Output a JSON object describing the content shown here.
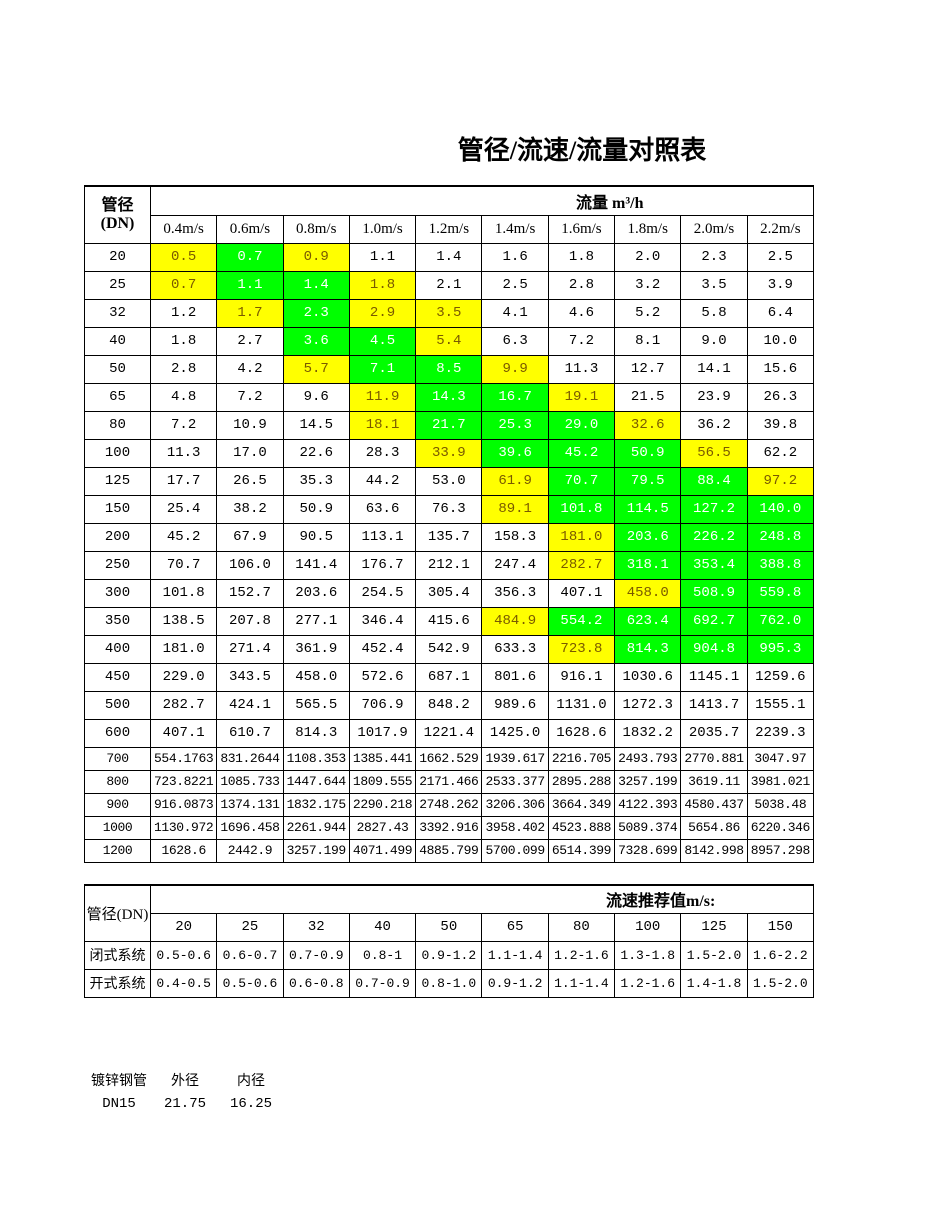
{
  "title": "管径/流速/流量对照表",
  "flow_table": {
    "dn_label": [
      "管径",
      "(DN)"
    ],
    "flow_label": "流量 m³/h",
    "velocities": [
      "0.4m/s",
      "0.6m/s",
      "0.8m/s",
      "1.0m/s",
      "1.2m/s",
      "1.4m/s",
      "1.6m/s",
      "1.8m/s",
      "2.0m/s",
      "2.2m/s"
    ],
    "fill_colors": {
      "yellow": "#ffff00",
      "green": "#00ff00"
    },
    "rows": [
      {
        "dn": "20",
        "values": [
          "0.5",
          "0.7",
          "0.9",
          "1.1",
          "1.4",
          "1.6",
          "1.8",
          "2.0",
          "2.3",
          "2.5"
        ],
        "fills": [
          "yellow",
          "green",
          "yellow",
          null,
          null,
          null,
          null,
          null,
          null,
          null
        ]
      },
      {
        "dn": "25",
        "values": [
          "0.7",
          "1.1",
          "1.4",
          "1.8",
          "2.1",
          "2.5",
          "2.8",
          "3.2",
          "3.5",
          "3.9"
        ],
        "fills": [
          "yellow",
          "green",
          "green",
          "yellow",
          null,
          null,
          null,
          null,
          null,
          null
        ]
      },
      {
        "dn": "32",
        "values": [
          "1.2",
          "1.7",
          "2.3",
          "2.9",
          "3.5",
          "4.1",
          "4.6",
          "5.2",
          "5.8",
          "6.4"
        ],
        "fills": [
          null,
          "yellow",
          "green",
          "yellow",
          "yellow",
          null,
          null,
          null,
          null,
          null
        ]
      },
      {
        "dn": "40",
        "values": [
          "1.8",
          "2.7",
          "3.6",
          "4.5",
          "5.4",
          "6.3",
          "7.2",
          "8.1",
          "9.0",
          "10.0"
        ],
        "fills": [
          null,
          null,
          "green",
          "green",
          "yellow",
          null,
          null,
          null,
          null,
          null
        ]
      },
      {
        "dn": "50",
        "values": [
          "2.8",
          "4.2",
          "5.7",
          "7.1",
          "8.5",
          "9.9",
          "11.3",
          "12.7",
          "14.1",
          "15.6"
        ],
        "fills": [
          null,
          null,
          "yellow",
          "green",
          "green",
          "yellow",
          null,
          null,
          null,
          null
        ]
      },
      {
        "dn": "65",
        "values": [
          "4.8",
          "7.2",
          "9.6",
          "11.9",
          "14.3",
          "16.7",
          "19.1",
          "21.5",
          "23.9",
          "26.3"
        ],
        "fills": [
          null,
          null,
          null,
          "yellow",
          "green",
          "green",
          "yellow",
          null,
          null,
          null
        ]
      },
      {
        "dn": "80",
        "values": [
          "7.2",
          "10.9",
          "14.5",
          "18.1",
          "21.7",
          "25.3",
          "29.0",
          "32.6",
          "36.2",
          "39.8"
        ],
        "fills": [
          null,
          null,
          null,
          "yellow",
          "green",
          "green",
          "green",
          "yellow",
          null,
          null
        ]
      },
      {
        "dn": "100",
        "values": [
          "11.3",
          "17.0",
          "22.6",
          "28.3",
          "33.9",
          "39.6",
          "45.2",
          "50.9",
          "56.5",
          "62.2"
        ],
        "fills": [
          null,
          null,
          null,
          null,
          "yellow",
          "green",
          "green",
          "green",
          "yellow",
          null
        ]
      },
      {
        "dn": "125",
        "values": [
          "17.7",
          "26.5",
          "35.3",
          "44.2",
          "53.0",
          "61.9",
          "70.7",
          "79.5",
          "88.4",
          "97.2"
        ],
        "fills": [
          null,
          null,
          null,
          null,
          null,
          "yellow",
          "green",
          "green",
          "green",
          "yellow"
        ]
      },
      {
        "dn": "150",
        "values": [
          "25.4",
          "38.2",
          "50.9",
          "63.6",
          "76.3",
          "89.1",
          "101.8",
          "114.5",
          "127.2",
          "140.0"
        ],
        "fills": [
          null,
          null,
          null,
          null,
          null,
          "yellow",
          "green",
          "green",
          "green",
          "green"
        ]
      },
      {
        "dn": "200",
        "values": [
          "45.2",
          "67.9",
          "90.5",
          "113.1",
          "135.7",
          "158.3",
          "181.0",
          "203.6",
          "226.2",
          "248.8"
        ],
        "fills": [
          null,
          null,
          null,
          null,
          null,
          null,
          "yellow",
          "green",
          "green",
          "green"
        ]
      },
      {
        "dn": "250",
        "values": [
          "70.7",
          "106.0",
          "141.4",
          "176.7",
          "212.1",
          "247.4",
          "282.7",
          "318.1",
          "353.4",
          "388.8"
        ],
        "fills": [
          null,
          null,
          null,
          null,
          null,
          null,
          "yellow",
          "green",
          "green",
          "green"
        ]
      },
      {
        "dn": "300",
        "values": [
          "101.8",
          "152.7",
          "203.6",
          "254.5",
          "305.4",
          "356.3",
          "407.1",
          "458.0",
          "508.9",
          "559.8"
        ],
        "fills": [
          null,
          null,
          null,
          null,
          null,
          null,
          null,
          "yellow",
          "green",
          "green"
        ]
      },
      {
        "dn": "350",
        "values": [
          "138.5",
          "207.8",
          "277.1",
          "346.4",
          "415.6",
          "484.9",
          "554.2",
          "623.4",
          "692.7",
          "762.0"
        ],
        "fills": [
          null,
          null,
          null,
          null,
          null,
          "yellow",
          "green",
          "green",
          "green",
          "green"
        ]
      },
      {
        "dn": "400",
        "values": [
          "181.0",
          "271.4",
          "361.9",
          "452.4",
          "542.9",
          "633.3",
          "723.8",
          "814.3",
          "904.8",
          "995.3"
        ],
        "fills": [
          null,
          null,
          null,
          null,
          null,
          null,
          "yellow",
          "green",
          "green",
          "green"
        ]
      },
      {
        "dn": "450",
        "values": [
          "229.0",
          "343.5",
          "458.0",
          "572.6",
          "687.1",
          "801.6",
          "916.1",
          "1030.6",
          "1145.1",
          "1259.6"
        ]
      },
      {
        "dn": "500",
        "values": [
          "282.7",
          "424.1",
          "565.5",
          "706.9",
          "848.2",
          "989.6",
          "1131.0",
          "1272.3",
          "1413.7",
          "1555.1"
        ]
      },
      {
        "dn": "600",
        "values": [
          "407.1",
          "610.7",
          "814.3",
          "1017.9",
          "1221.4",
          "1425.0",
          "1628.6",
          "1832.2",
          "2035.7",
          "2239.3"
        ]
      },
      {
        "dn": "700",
        "values": [
          "554.1763",
          "831.2644",
          "1108.353",
          "1385.441",
          "1662.529",
          "1939.617",
          "2216.705",
          "2493.793",
          "2770.881",
          "3047.97"
        ]
      },
      {
        "dn": "800",
        "values": [
          "723.8221",
          "1085.733",
          "1447.644",
          "1809.555",
          "2171.466",
          "2533.377",
          "2895.288",
          "3257.199",
          "3619.11",
          "3981.021"
        ]
      },
      {
        "dn": "900",
        "values": [
          "916.0873",
          "1374.131",
          "1832.175",
          "2290.218",
          "2748.262",
          "3206.306",
          "3664.349",
          "4122.393",
          "4580.437",
          "5038.48"
        ]
      },
      {
        "dn": "1000",
        "values": [
          "1130.972",
          "1696.458",
          "2261.944",
          "2827.43",
          "3392.916",
          "3958.402",
          "4523.888",
          "5089.374",
          "5654.86",
          "6220.346"
        ]
      },
      {
        "dn": "1200",
        "values": [
          "1628.6",
          "2442.9",
          "3257.199",
          "4071.499",
          "4885.799",
          "5700.099",
          "6514.399",
          "7328.699",
          "8142.998",
          "8957.298"
        ]
      }
    ]
  },
  "velocity_table": {
    "dn_label": "管径(DN)",
    "velocity_label": "流速推荐值m/s:",
    "dns": [
      "20",
      "25",
      "32",
      "40",
      "50",
      "65",
      "80",
      "100",
      "125",
      "150"
    ],
    "rows": [
      {
        "system": "闭式系统",
        "values": [
          "0.5-0.6",
          "0.6-0.7",
          "0.7-0.9",
          "0.8-1",
          "0.9-1.2",
          "1.1-1.4",
          "1.2-1.6",
          "1.3-1.8",
          "1.5-2.0",
          "1.6-2.2"
        ]
      },
      {
        "system": "开式系统",
        "values": [
          "0.4-0.5",
          "0.5-0.6",
          "0.6-0.8",
          "0.7-0.9",
          "0.8-1.0",
          "0.9-1.2",
          "1.1-1.4",
          "1.2-1.6",
          "1.4-1.8",
          "1.5-2.0"
        ]
      }
    ]
  },
  "pipe_info": {
    "headers": [
      "镀锌钢管",
      "外径",
      "内径"
    ],
    "rows": [
      [
        "DN15",
        "21.75",
        "16.25"
      ]
    ]
  }
}
